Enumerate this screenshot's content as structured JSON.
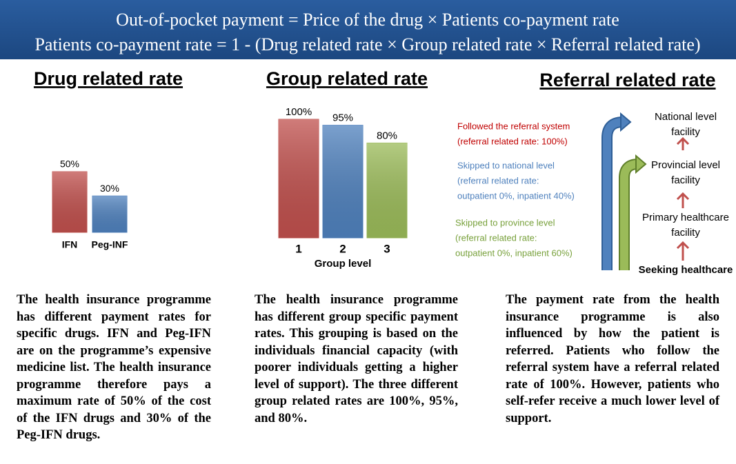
{
  "header": {
    "lines": [
      "Out-of-pocket payment = Price of the drug × Patients co-payment rate",
      "Patients co-payment rate = 1 - (Drug related rate × Group related rate × Referral related rate)"
    ]
  },
  "sections": [
    {
      "title": "Drug related rate",
      "text": "The health insurance programme has different payment rates for specific drugs. IFN and Peg-IFN are on the programme’s expensive medicine list. The health insurance programme therefore pays a maximum rate of 50% of the cost of the IFN drugs and 30% of the Peg-IFN drugs."
    },
    {
      "title": "Group related rate",
      "text": "The health insurance programme has different group specific payment rates. This grouping is based on the individuals financial capacity (with poorer individuals getting a higher level of support). The three different group related rates are 100%, 95%, and 80%."
    },
    {
      "title": "Referral related rate",
      "text": "The payment rate from the health insurance programme is also influenced by how the patient is referred. Patients who follow the referral system have a referral related rate of 100%. However, patients who self-refer receive a much lower level of support."
    }
  ],
  "chart_data": [
    {
      "type": "bar",
      "categories": [
        "IFN",
        "Peg-INF"
      ],
      "values": [
        50,
        30
      ],
      "value_labels": [
        "50%",
        "30%"
      ],
      "colors": [
        "#c0504d",
        "#4f81bd"
      ]
    },
    {
      "type": "bar",
      "categories": [
        "1",
        "2",
        "3"
      ],
      "values": [
        100,
        95,
        80
      ],
      "value_labels": [
        "100%",
        "95%",
        "80%"
      ],
      "colors": [
        "#c0504d",
        "#4f81bd",
        "#9bbb59"
      ],
      "x_label": "Group level"
    }
  ],
  "referral": {
    "paths": [
      {
        "lines": [
          "Followed the referral system",
          "(referral related rate: 100%)"
        ],
        "color": "#c00000"
      },
      {
        "lines": [
          "Skipped to national level",
          "(referral related rate:",
          "outpatient 0%, inpatient 40%)"
        ],
        "color": "#4f81bd"
      },
      {
        "lines": [
          "Skipped to province level",
          "(referral related rate:",
          "outpatient 0%, inpatient 60%)"
        ],
        "color": "#77a03a"
      }
    ],
    "nodes": [
      {
        "lines": [
          "National level",
          "facility"
        ]
      },
      {
        "lines": [
          "Provincial level",
          "facility"
        ]
      },
      {
        "lines": [
          "Primary healthcare",
          "facility"
        ]
      },
      {
        "lines": [
          "Seeking healthcare"
        ]
      }
    ]
  }
}
